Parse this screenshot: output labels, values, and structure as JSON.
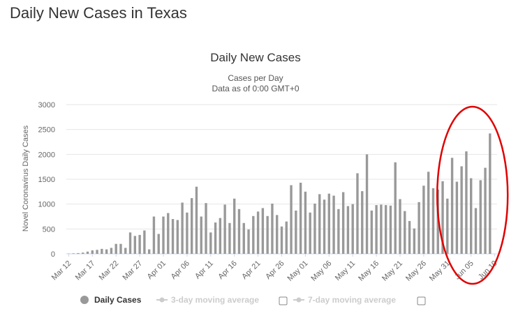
{
  "page_title": "Daily New Cases in Texas",
  "chart_data": {
    "type": "bar",
    "title": "Daily New Cases",
    "subtitle_lines": [
      "Cases per Day",
      "Data as of 0:00 GMT+0"
    ],
    "ylabel": "Novel Coronavirus Daily Cases",
    "xlabel": "",
    "ylim": [
      0,
      3000
    ],
    "yticks": [
      0,
      500,
      1000,
      1500,
      2000,
      2500,
      3000
    ],
    "x_tick_labels": [
      "Mar 12",
      "Mar 17",
      "Mar 22",
      "Mar 27",
      "Apr 01",
      "Apr 06",
      "Apr 11",
      "Apr 16",
      "Apr 21",
      "Apr 26",
      "May 01",
      "May 06",
      "May 11",
      "May 16",
      "May 21",
      "May 26",
      "May 31",
      "Jun 05",
      "Jun 10"
    ],
    "grid": true,
    "legend_position": "bottom",
    "bar_color": "#999999",
    "categories": [
      "Mar 12",
      "Mar 13",
      "Mar 14",
      "Mar 15",
      "Mar 16",
      "Mar 17",
      "Mar 18",
      "Mar 19",
      "Mar 20",
      "Mar 21",
      "Mar 22",
      "Mar 23",
      "Mar 24",
      "Mar 25",
      "Mar 26",
      "Mar 27",
      "Mar 28",
      "Mar 29",
      "Mar 30",
      "Mar 31",
      "Apr 01",
      "Apr 02",
      "Apr 03",
      "Apr 04",
      "Apr 05",
      "Apr 06",
      "Apr 07",
      "Apr 08",
      "Apr 09",
      "Apr 10",
      "Apr 11",
      "Apr 12",
      "Apr 13",
      "Apr 14",
      "Apr 15",
      "Apr 16",
      "Apr 17",
      "Apr 18",
      "Apr 19",
      "Apr 20",
      "Apr 21",
      "Apr 22",
      "Apr 23",
      "Apr 24",
      "Apr 25",
      "Apr 26",
      "Apr 27",
      "Apr 28",
      "Apr 29",
      "Apr 30",
      "May 01",
      "May 02",
      "May 03",
      "May 04",
      "May 05",
      "May 06",
      "May 07",
      "May 08",
      "May 09",
      "May 10",
      "May 11",
      "May 12",
      "May 13",
      "May 14",
      "May 15",
      "May 16",
      "May 17",
      "May 18",
      "May 19",
      "May 20",
      "May 21",
      "May 22",
      "May 23",
      "May 24",
      "May 25",
      "May 26",
      "May 27",
      "May 28",
      "May 29",
      "May 30",
      "May 31",
      "Jun 01",
      "Jun 02",
      "Jun 03",
      "Jun 04",
      "Jun 05",
      "Jun 06",
      "Jun 07",
      "Jun 08",
      "Jun 09",
      "Jun 10"
    ],
    "series": [
      {
        "name": "Daily Cases",
        "values": [
          5,
          10,
          15,
          25,
          45,
          70,
          80,
          100,
          90,
          120,
          200,
          200,
          120,
          430,
          360,
          380,
          470,
          90,
          750,
          400,
          750,
          820,
          700,
          680,
          1030,
          830,
          1120,
          1350,
          750,
          1020,
          430,
          630,
          720,
          990,
          620,
          1110,
          900,
          620,
          490,
          760,
          850,
          920,
          760,
          1010,
          780,
          550,
          650,
          1380,
          870,
          1430,
          1250,
          830,
          1010,
          1200,
          1090,
          1210,
          1170,
          900,
          1240,
          960,
          1000,
          1620,
          1260,
          2000,
          870,
          980,
          990,
          980,
          970,
          1840,
          1100,
          860,
          660,
          510,
          1040,
          1370,
          1650,
          1320,
          1290,
          1460,
          1110,
          1930,
          1450,
          1760,
          2060,
          1520,
          920,
          1480,
          1730,
          2420,
          0
        ]
      }
    ],
    "legend": [
      {
        "label": "Daily Cases",
        "active": true
      },
      {
        "label": "3-day moving average",
        "active": false
      },
      {
        "label": "7-day moving average",
        "active": false
      }
    ],
    "annotation": {
      "shape": "ellipse",
      "color": "#e00000",
      "covers_from": "Jun 01",
      "covers_to": "Jun 09"
    }
  }
}
